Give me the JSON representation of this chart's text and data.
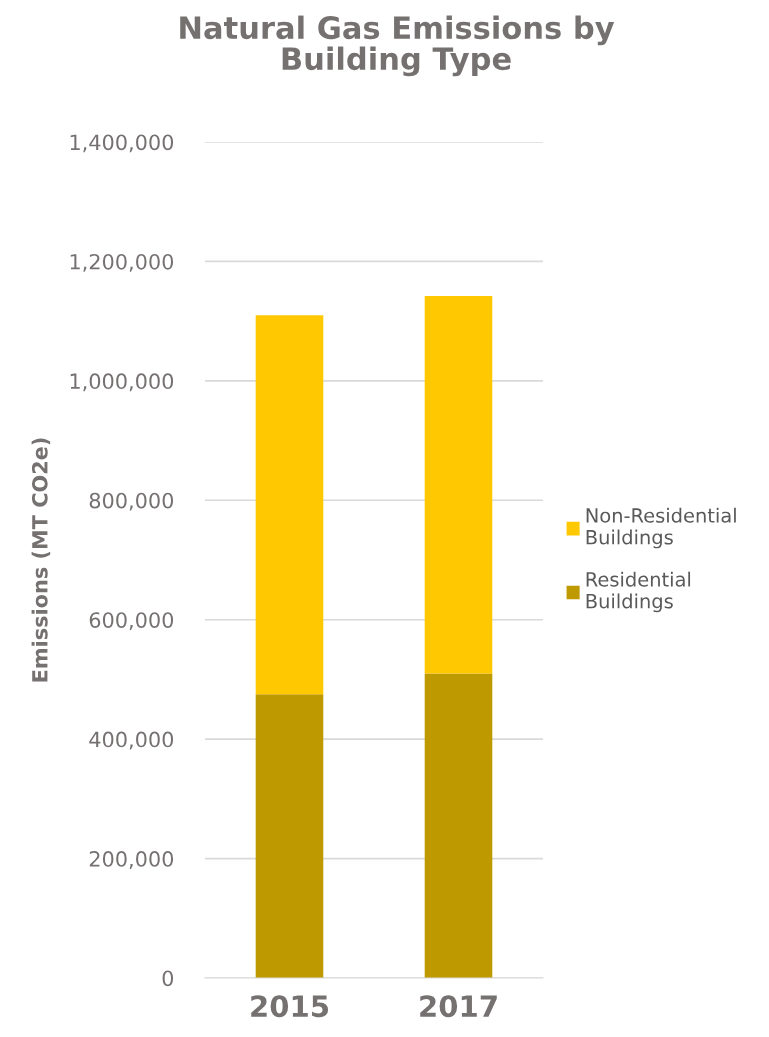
{
  "chart_data": {
    "type": "bar",
    "title": "Natural Gas Emissions by\nBuilding Type",
    "ylabel": "Emissions (MT CO2e)",
    "categories": [
      "2015",
      "2017"
    ],
    "stacked": true,
    "series": [
      {
        "name": "Residential\nBuildings",
        "color": "#bf9900",
        "values": [
          475000,
          510000
        ]
      },
      {
        "name": "Non-Residential\nBuildings",
        "color": "#ffc800",
        "values": [
          635000,
          632000
        ]
      }
    ],
    "ylim": [
      0,
      1400000
    ],
    "yticks": [
      {
        "value": 0,
        "label": "0"
      },
      {
        "value": 200000,
        "label": "200,000"
      },
      {
        "value": 400000,
        "label": "400,000"
      },
      {
        "value": 600000,
        "label": "600,000"
      },
      {
        "value": 800000,
        "label": "800,000"
      },
      {
        "value": 1000000,
        "label": "1,000,000"
      },
      {
        "value": 1200000,
        "label": "1,200,000"
      },
      {
        "value": 1400000,
        "label": "1,400,000"
      }
    ],
    "grid": "y",
    "legend": "right"
  }
}
